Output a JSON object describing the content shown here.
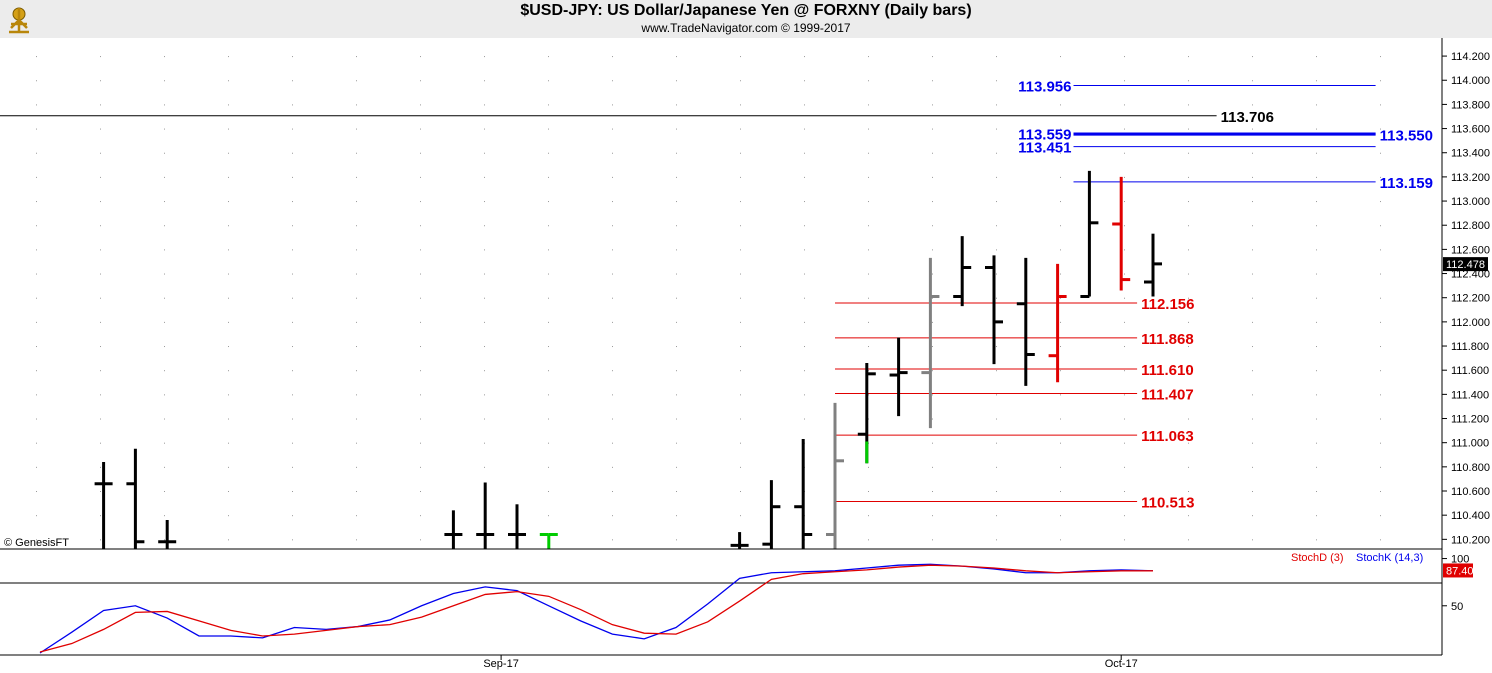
{
  "header": {
    "title": "$USD-JPY:  US Dollar/Japanese Yen @ FORXNY  (Daily bars)",
    "copyright": "www.TradeNavigator.com © 1999-2017"
  },
  "watermark": "© GenesisFT",
  "colors": {
    "up": "#000000",
    "neutral": "#808080",
    "red": "#e00000",
    "green": "#00cc00",
    "blue": "#0000ee",
    "stochD": "#e00000",
    "stochK": "#0000ee"
  },
  "chart_data": [
    {
      "type": "ohlc",
      "ylim": [
        110.12,
        114.3
      ],
      "y_ticks": [
        "114.200",
        "114.000",
        "113.800",
        "113.600",
        "113.400",
        "113.200",
        "113.000",
        "112.800",
        "112.600",
        "112.400",
        "112.200",
        "112.000",
        "111.800",
        "111.600",
        "111.400",
        "111.200",
        "111.000",
        "110.800",
        "110.600",
        "110.400",
        "110.200"
      ],
      "last_price": "112.478",
      "x_labels": [
        {
          "bar": 14.5,
          "label": "Sep-17"
        },
        {
          "bar": 34,
          "label": "Oct-17"
        }
      ],
      "bars": [
        {
          "i": 2,
          "high": 110.84,
          "low": 110.12,
          "open": 110.66,
          "close": 110.66,
          "color": "black"
        },
        {
          "i": 3,
          "high": 110.95,
          "low": 110.12,
          "open": 110.66,
          "close": 110.18,
          "color": "black"
        },
        {
          "i": 4,
          "high": 110.36,
          "low": 110.12,
          "open": 110.18,
          "close": 110.18,
          "color": "black"
        },
        {
          "i": 13,
          "high": 110.44,
          "low": 110.12,
          "open": 110.24,
          "close": 110.24,
          "color": "black"
        },
        {
          "i": 14,
          "high": 110.67,
          "low": 110.12,
          "open": 110.24,
          "close": 110.24,
          "color": "black"
        },
        {
          "i": 15,
          "high": 110.49,
          "low": 110.12,
          "open": 110.24,
          "close": 110.24,
          "color": "black"
        },
        {
          "i": 16,
          "high": 110.24,
          "low": 110.12,
          "open": 110.24,
          "close": 110.24,
          "color": "green"
        },
        {
          "i": 22,
          "high": 110.26,
          "low": 110.12,
          "open": 110.15,
          "close": 110.15,
          "color": "black"
        },
        {
          "i": 23,
          "high": 110.69,
          "low": 110.12,
          "open": 110.16,
          "close": 110.47,
          "color": "black"
        },
        {
          "i": 24,
          "high": 111.03,
          "low": 110.12,
          "open": 110.47,
          "close": 110.24,
          "color": "black"
        },
        {
          "i": 25,
          "high": 111.33,
          "low": 110.12,
          "open": 110.24,
          "close": 110.85,
          "color": "grey"
        },
        {
          "i": 26,
          "high": 111.66,
          "low": 110.83,
          "open": 111.07,
          "close": 111.57,
          "color": "black"
        },
        {
          "i": 27,
          "high": 111.87,
          "low": 111.22,
          "open": 111.56,
          "close": 111.58,
          "color": "black"
        },
        {
          "i": 28,
          "high": 112.53,
          "low": 111.12,
          "open": 111.58,
          "close": 112.21,
          "color": "grey"
        },
        {
          "i": 29,
          "high": 112.71,
          "low": 112.13,
          "open": 112.21,
          "close": 112.45,
          "color": "black"
        },
        {
          "i": 30,
          "high": 112.55,
          "low": 111.65,
          "open": 112.45,
          "close": 112.0,
          "color": "black"
        },
        {
          "i": 31,
          "high": 112.53,
          "low": 111.47,
          "open": 112.15,
          "close": 111.73,
          "color": "black"
        },
        {
          "i": 32,
          "high": 112.48,
          "low": 111.5,
          "open": 111.72,
          "close": 112.21,
          "color": "red"
        },
        {
          "i": 33,
          "high": 113.25,
          "low": 112.21,
          "open": 112.21,
          "close": 112.82,
          "color": "black"
        },
        {
          "i": 34,
          "high": 113.2,
          "low": 112.26,
          "open": 112.81,
          "close": 112.35,
          "color": "red"
        },
        {
          "i": 35,
          "high": 112.73,
          "low": 112.21,
          "open": 112.33,
          "close": 112.48,
          "color": "black"
        }
      ],
      "highlight_bars": [
        {
          "i": 26,
          "low": 110.83,
          "high": 111.01,
          "color": "green"
        }
      ],
      "levels": [
        {
          "label": "113.956",
          "value": 113.956,
          "color": "blue",
          "label_side": "left",
          "x0_bar": 32.5,
          "x1_bar": 42
        },
        {
          "label": "113.706",
          "value": 113.706,
          "color": "black",
          "label_side": "right",
          "x0_bar": -2,
          "x1_bar": 37
        },
        {
          "label": "113.559",
          "value": 113.559,
          "color": "blue",
          "label_side": "left",
          "x0_bar": 32.5,
          "x1_bar": 42
        },
        {
          "label": "113.550",
          "value": 113.55,
          "color": "blue",
          "label_side": "right",
          "x0_bar": 32.5,
          "x1_bar": 42
        },
        {
          "label": "113.451",
          "value": 113.451,
          "color": "blue",
          "label_side": "left",
          "x0_bar": 32.5,
          "x1_bar": 42
        },
        {
          "label": "113.159",
          "value": 113.159,
          "color": "blue",
          "label_side": "right",
          "x0_bar": 32.5,
          "x1_bar": 42
        },
        {
          "label": "112.156",
          "value": 112.156,
          "color": "red",
          "label_side": "right",
          "x0_bar": 25,
          "x1_bar": 34.5
        },
        {
          "label": "111.868",
          "value": 111.868,
          "color": "red",
          "label_side": "right",
          "x0_bar": 25,
          "x1_bar": 34.5
        },
        {
          "label": "111.610",
          "value": 111.61,
          "color": "red",
          "label_side": "right",
          "x0_bar": 25,
          "x1_bar": 34.5
        },
        {
          "label": "111.407",
          "value": 111.407,
          "color": "red",
          "label_side": "right",
          "x0_bar": 25,
          "x1_bar": 34.5
        },
        {
          "label": "111.063",
          "value": 111.063,
          "color": "red",
          "label_side": "right",
          "x0_bar": 25,
          "x1_bar": 34.5
        },
        {
          "label": "110.513",
          "value": 110.513,
          "color": "red",
          "label_side": "right",
          "x0_bar": 25,
          "x1_bar": 34.5
        }
      ]
    },
    {
      "type": "line",
      "ylim": [
        0,
        108
      ],
      "y_ticks": [
        "100",
        "50"
      ],
      "last_value": "87.40",
      "legend": [
        {
          "name": "StochD (3)",
          "color": "red"
        },
        {
          "name": "StochK (14,3)",
          "color": "blue"
        }
      ],
      "series": [
        {
          "name": "StochK (14,3)",
          "color": "blue",
          "points": [
            [
              0,
              0
            ],
            [
              1,
              22
            ],
            [
              2,
              45
            ],
            [
              3,
              50
            ],
            [
              4,
              37
            ],
            [
              5,
              18
            ],
            [
              6,
              18
            ],
            [
              7,
              16
            ],
            [
              8,
              27
            ],
            [
              9,
              25
            ],
            [
              10,
              28
            ],
            [
              11,
              35
            ],
            [
              12,
              50
            ],
            [
              13,
              63
            ],
            [
              14,
              70
            ],
            [
              15,
              66
            ],
            [
              16,
              50
            ],
            [
              17,
              34
            ],
            [
              18,
              20
            ],
            [
              19,
              15
            ],
            [
              20,
              27
            ],
            [
              21,
              52
            ],
            [
              22,
              79
            ],
            [
              23,
              85
            ],
            [
              24,
              86
            ],
            [
              25,
              87
            ],
            [
              26,
              90
            ],
            [
              27,
              93
            ],
            [
              28,
              94
            ],
            [
              29,
              92
            ],
            [
              30,
              89
            ],
            [
              31,
              85
            ],
            [
              32,
              85
            ],
            [
              33,
              87
            ],
            [
              34,
              88
            ],
            [
              35,
              87
            ]
          ]
        },
        {
          "name": "StochD (3)",
          "color": "red",
          "points": [
            [
              0,
              1
            ],
            [
              1,
              10
            ],
            [
              2,
              25
            ],
            [
              3,
              43
            ],
            [
              4,
              44
            ],
            [
              5,
              34
            ],
            [
              6,
              24
            ],
            [
              7,
              18
            ],
            [
              8,
              20
            ],
            [
              9,
              24
            ],
            [
              10,
              28
            ],
            [
              11,
              30
            ],
            [
              12,
              38
            ],
            [
              13,
              50
            ],
            [
              14,
              62
            ],
            [
              15,
              65
            ],
            [
              16,
              60
            ],
            [
              17,
              46
            ],
            [
              18,
              30
            ],
            [
              19,
              21
            ],
            [
              20,
              20
            ],
            [
              21,
              33
            ],
            [
              22,
              55
            ],
            [
              23,
              78
            ],
            [
              24,
              84
            ],
            [
              25,
              86
            ],
            [
              26,
              88
            ],
            [
              27,
              91
            ],
            [
              28,
              93
            ],
            [
              29,
              92
            ],
            [
              30,
              90
            ],
            [
              31,
              87
            ],
            [
              32,
              85
            ],
            [
              33,
              86
            ],
            [
              34,
              87
            ],
            [
              35,
              87
            ]
          ]
        }
      ]
    }
  ]
}
